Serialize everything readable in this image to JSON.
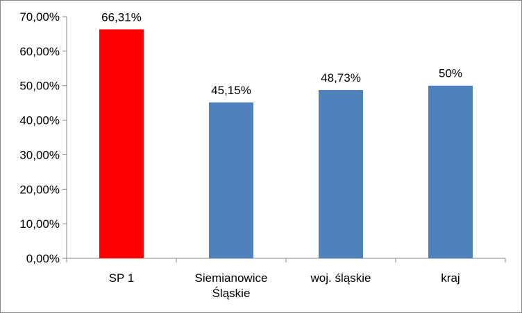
{
  "chart_data": {
    "type": "bar",
    "categories": [
      "SP 1",
      "Siemianowice Śląskie",
      "woj. śląskie",
      "kraj"
    ],
    "category_lines": [
      [
        "SP 1"
      ],
      [
        "Siemianowice",
        "Śląskie"
      ],
      [
        "woj. śląskie"
      ],
      [
        "kraj"
      ]
    ],
    "values": [
      66.31,
      45.15,
      48.73,
      50
    ],
    "data_labels": [
      "66,31%",
      "45,15%",
      "48,73%",
      "50%"
    ],
    "bar_colors": [
      "#ff0000",
      "#4f81bd",
      "#4f81bd",
      "#4f81bd"
    ],
    "ylim": [
      0,
      70
    ],
    "yticks": [
      0,
      10,
      20,
      30,
      40,
      50,
      60,
      70
    ],
    "ytick_labels": [
      "0,00%",
      "10,00%",
      "20,00%",
      "30,00%",
      "40,00%",
      "50,00%",
      "60,00%",
      "70,00%"
    ],
    "title": "",
    "xlabel": "",
    "ylabel": "",
    "grid": false,
    "legend": "none"
  }
}
